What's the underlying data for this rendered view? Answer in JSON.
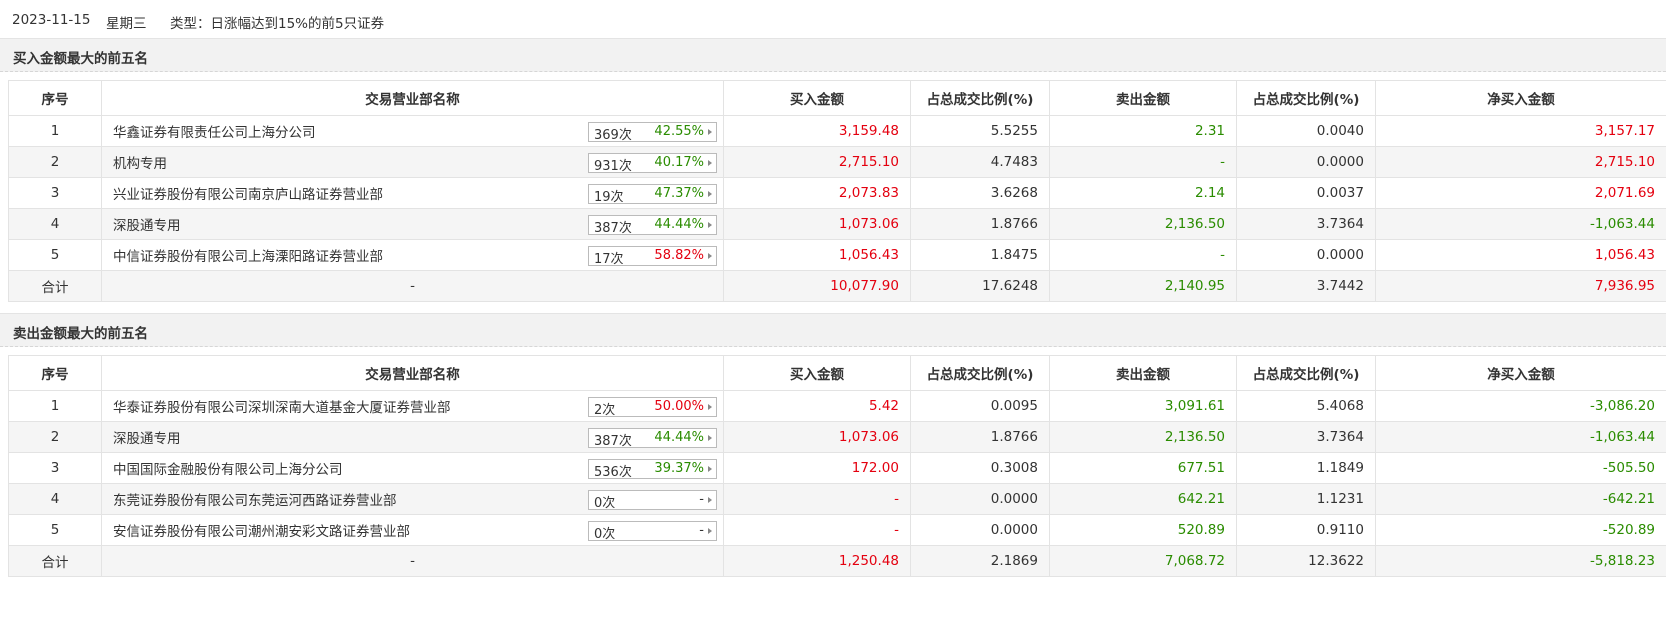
{
  "header": {
    "date": "2023-11-15",
    "weekday": "星期三",
    "type_text": "类型：日涨幅达到15%的前5只证券"
  },
  "columns": [
    "序号",
    "交易营业部名称",
    "买入金额",
    "占总成交比例(%)",
    "卖出金额",
    "占总成交比例(%)",
    "净买入金额"
  ],
  "buy_section": {
    "title": "买入金额最大的前五名",
    "rows": [
      {
        "rank": "1",
        "name": "华鑫证券有限责任公司上海分公司",
        "count": "369次",
        "pct": "42.55%",
        "pct_color": "green",
        "buy": "3,159.48",
        "buy_ratio": "5.5255",
        "sell": "2.31",
        "sell_ratio": "0.0040",
        "net": "3,157.17",
        "net_color": "red"
      },
      {
        "rank": "2",
        "name": "机构专用",
        "count": "931次",
        "pct": "40.17%",
        "pct_color": "green",
        "buy": "2,715.10",
        "buy_ratio": "4.7483",
        "sell": "-",
        "sell_ratio": "0.0000",
        "net": "2,715.10",
        "net_color": "red"
      },
      {
        "rank": "3",
        "name": "兴业证券股份有限公司南京庐山路证券营业部",
        "count": "19次",
        "pct": "47.37%",
        "pct_color": "green",
        "buy": "2,073.83",
        "buy_ratio": "3.6268",
        "sell": "2.14",
        "sell_ratio": "0.0037",
        "net": "2,071.69",
        "net_color": "red"
      },
      {
        "rank": "4",
        "name": "深股通专用",
        "count": "387次",
        "pct": "44.44%",
        "pct_color": "green",
        "buy": "1,073.06",
        "buy_ratio": "1.8766",
        "sell": "2,136.50",
        "sell_ratio": "3.7364",
        "net": "-1,063.44",
        "net_color": "green"
      },
      {
        "rank": "5",
        "name": "中信证券股份有限公司上海溧阳路证券营业部",
        "count": "17次",
        "pct": "58.82%",
        "pct_color": "red",
        "buy": "1,056.43",
        "buy_ratio": "1.8475",
        "sell": "-",
        "sell_ratio": "0.0000",
        "net": "1,056.43",
        "net_color": "red"
      }
    ],
    "total": {
      "label": "合计",
      "name": "-",
      "buy": "10,077.90",
      "buy_ratio": "17.6248",
      "sell": "2,140.95",
      "sell_ratio": "3.7442",
      "net": "7,936.95",
      "net_color": "red"
    }
  },
  "sell_section": {
    "title": "卖出金额最大的前五名",
    "rows": [
      {
        "rank": "1",
        "name": "华泰证券股份有限公司深圳深南大道基金大厦证券营业部",
        "count": "2次",
        "pct": "50.00%",
        "pct_color": "red",
        "buy": "5.42",
        "buy_ratio": "0.0095",
        "sell": "3,091.61",
        "sell_ratio": "5.4068",
        "net": "-3,086.20",
        "net_color": "green"
      },
      {
        "rank": "2",
        "name": "深股通专用",
        "count": "387次",
        "pct": "44.44%",
        "pct_color": "green",
        "buy": "1,073.06",
        "buy_ratio": "1.8766",
        "sell": "2,136.50",
        "sell_ratio": "3.7364",
        "net": "-1,063.44",
        "net_color": "green"
      },
      {
        "rank": "3",
        "name": "中国国际金融股份有限公司上海分公司",
        "count": "536次",
        "pct": "39.37%",
        "pct_color": "green",
        "buy": "172.00",
        "buy_ratio": "0.3008",
        "sell": "677.51",
        "sell_ratio": "1.1849",
        "net": "-505.50",
        "net_color": "green"
      },
      {
        "rank": "4",
        "name": "东莞证券股份有限公司东莞运河西路证券营业部",
        "count": "0次",
        "pct": "-",
        "pct_color": "dark",
        "buy": "-",
        "buy_ratio": "0.0000",
        "sell": "642.21",
        "sell_ratio": "1.1231",
        "net": "-642.21",
        "net_color": "green"
      },
      {
        "rank": "5",
        "name": "安信证券股份有限公司潮州潮安彩文路证券营业部",
        "count": "0次",
        "pct": "-",
        "pct_color": "dark",
        "buy": "-",
        "buy_ratio": "0.0000",
        "sell": "520.89",
        "sell_ratio": "0.9110",
        "net": "-520.89",
        "net_color": "green"
      }
    ],
    "total": {
      "label": "合计",
      "name": "-",
      "buy": "1,250.48",
      "buy_ratio": "2.1869",
      "sell": "7,068.72",
      "sell_ratio": "12.3622",
      "net": "-5,818.23",
      "net_color": "green"
    }
  },
  "colors": {
    "red": "#e4000f",
    "green": "#2a8c00",
    "dark": "#333333",
    "header_band": "#f2f2f2",
    "stripe": "#f5f5f5"
  }
}
